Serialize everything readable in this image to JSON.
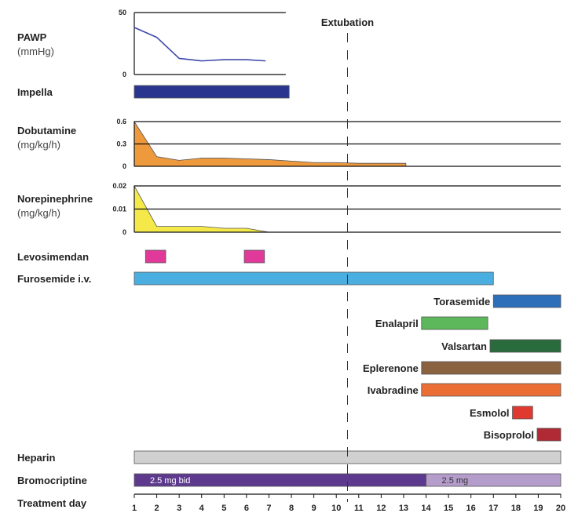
{
  "chart_data": {
    "type": "timeline",
    "xlabel": "Treatment day",
    "xlim": [
      1,
      20
    ],
    "xticks": [
      "1",
      "2",
      "3",
      "4",
      "5",
      "6",
      "7",
      "8",
      "9",
      "10",
      "11",
      "12",
      "13",
      "14",
      "15",
      "16",
      "17",
      "18",
      "19",
      "20"
    ],
    "annotation": {
      "label": "Extubation",
      "day": 10.5
    },
    "line_panels": [
      {
        "name": "PAWP",
        "unit": "(mmHg)",
        "type": "line",
        "color": "#3f4aa8",
        "ylim": [
          0,
          50
        ],
        "yticks": [
          "0",
          "50"
        ],
        "xmax": 7.75,
        "x": [
          1,
          2,
          3,
          4,
          5,
          6,
          6.85
        ],
        "y": [
          38,
          30,
          13,
          11,
          12,
          12,
          11
        ]
      },
      {
        "name": "Dobutamine",
        "unit": "(mg/kg/h)",
        "type": "area",
        "color": "#ee9a3c",
        "ylim": [
          0,
          0.6
        ],
        "yticks": [
          "0",
          "0.3",
          "0.6"
        ],
        "xmax": 20,
        "x": [
          1,
          2,
          3,
          4,
          5,
          6,
          7,
          8,
          9,
          10,
          11,
          12,
          13.1
        ],
        "y": [
          0.6,
          0.13,
          0.08,
          0.11,
          0.11,
          0.1,
          0.09,
          0.07,
          0.05,
          0.05,
          0.04,
          0.04,
          0.04
        ]
      },
      {
        "name": "Norepinephrine",
        "unit": "(mg/kg/h)",
        "type": "area",
        "color": "#f5e94a",
        "ylim": [
          0,
          0.02
        ],
        "yticks": [
          "0",
          "0.01",
          "0.02"
        ],
        "xmax": 20,
        "x": [
          1,
          2,
          3,
          4,
          5,
          6,
          7
        ],
        "y": [
          0.02,
          0.0025,
          0.0025,
          0.0025,
          0.0017,
          0.0017,
          0
        ]
      }
    ],
    "bars": [
      {
        "name": "Impella",
        "side": "left",
        "color": "#2a3590",
        "segments": [
          {
            "start": 1,
            "end": 7.9
          }
        ]
      },
      {
        "name": "Levosimendan",
        "side": "left",
        "color": "#e0399a",
        "segments": [
          {
            "start": 1.5,
            "end": 2.4
          },
          {
            "start": 5.9,
            "end": 6.8
          }
        ]
      },
      {
        "name": "Furosemide i.v.",
        "side": "left",
        "color": "#4aaee0",
        "segments": [
          {
            "start": 1,
            "end": 17
          }
        ]
      },
      {
        "name": "Torasemide",
        "side": "right",
        "color": "#2e6fba",
        "segments": [
          {
            "start": 17,
            "end": 20
          }
        ]
      },
      {
        "name": "Enalapril",
        "side": "right",
        "color": "#5cb85a",
        "segments": [
          {
            "start": 13.8,
            "end": 16.75
          }
        ]
      },
      {
        "name": "Valsartan",
        "side": "right",
        "color": "#2a6b3e",
        "segments": [
          {
            "start": 16.85,
            "end": 20
          }
        ]
      },
      {
        "name": "Eplerenone",
        "side": "right",
        "color": "#8a6240",
        "segments": [
          {
            "start": 13.8,
            "end": 20
          }
        ]
      },
      {
        "name": "Ivabradine",
        "side": "right",
        "color": "#eb6e35",
        "segments": [
          {
            "start": 13.8,
            "end": 20
          }
        ]
      },
      {
        "name": "Esmolol",
        "side": "right",
        "color": "#e03a30",
        "segments": [
          {
            "start": 17.85,
            "end": 18.75
          }
        ]
      },
      {
        "name": "Bisoprolol",
        "side": "right",
        "color": "#b02a35",
        "segments": [
          {
            "start": 18.95,
            "end": 20
          }
        ]
      },
      {
        "name": "Heparin",
        "side": "left",
        "color": "#d0d0d0",
        "segments": [
          {
            "start": 1,
            "end": 20
          }
        ]
      },
      {
        "name": "Bromocriptine",
        "side": "left",
        "color": "#5e3a8e",
        "segments": [
          {
            "start": 1,
            "end": 14,
            "label": "2.5 mg bid",
            "color": "#5e3a8e",
            "text_color": "#ffffff"
          },
          {
            "start": 14,
            "end": 20,
            "label": "2.5 mg",
            "color": "#b49ccb",
            "text_color": "#333333"
          }
        ]
      }
    ]
  }
}
